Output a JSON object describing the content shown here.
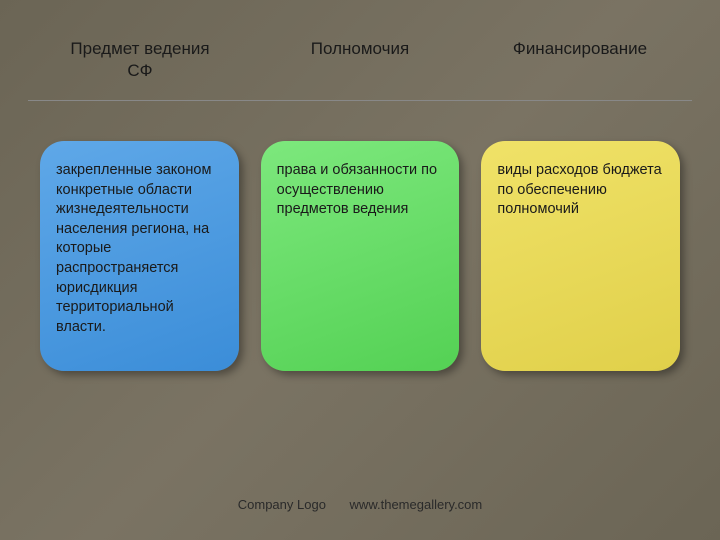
{
  "headers": {
    "col1": "Предмет ведения\nСФ",
    "col2": "Полномочия",
    "col3": "Финансирование"
  },
  "cards": {
    "col1": {
      "text": "закрепленные законом конкретные области жизнедеятельности населения региона, на которые распространяется юрисдикция территориальной власти.",
      "background": "linear-gradient(160deg, #5fa8e8 0%, #3b8dd8 100%)",
      "border_radius": 24
    },
    "col2": {
      "text": "права и обязанности по осуществлению предметов ведения",
      "background": "linear-gradient(160deg, #7de87d 0%, #54d154 100%)",
      "border_radius": 24
    },
    "col3": {
      "text": "виды расходов бюджета по обеспечению полномочий",
      "background": "linear-gradient(160deg, #f0e268 0%, #e0d04a 100%)",
      "border_radius": 24
    }
  },
  "styling": {
    "page_background": "linear-gradient(135deg, #6b6555 0%, #7a7363 50%, #6b6555 100%)",
    "header_fontsize": 17,
    "header_color": "#1a1a1a",
    "card_text_fontsize": 14.5,
    "card_text_color": "#1a1a1a",
    "card_min_height": 230,
    "card_shadow": "4px 4px 8px rgba(0,0,0,0.35)",
    "divider_color": "#888",
    "footer_color": "#2a2a2a",
    "footer_fontsize": 13
  },
  "footer": {
    "logo_text": "Company Logo",
    "url": "www.themegallery.com"
  }
}
